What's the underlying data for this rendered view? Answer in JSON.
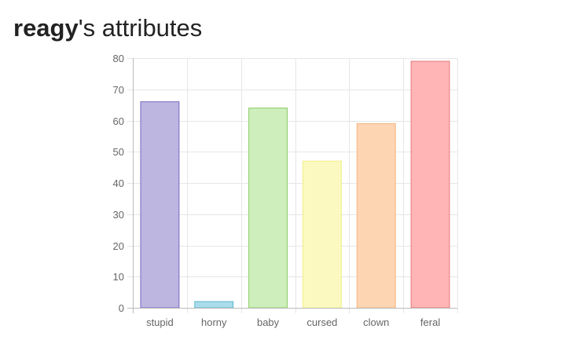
{
  "heading": {
    "user": "reagy",
    "suffix": "'s attributes"
  },
  "chart_data": {
    "type": "bar",
    "title": "",
    "xlabel": "",
    "ylabel": "",
    "categories": [
      "stupid",
      "horny",
      "baby",
      "cursed",
      "clown",
      "feral"
    ],
    "values": [
      66,
      2,
      64,
      47,
      59,
      79
    ],
    "ylim": [
      0,
      80
    ],
    "yticks": [
      "0",
      "10",
      "20",
      "30",
      "40",
      "50",
      "60",
      "70",
      "80"
    ],
    "grid": true,
    "legend": "none",
    "colors": {
      "fill": [
        "#bdb6e0",
        "#a9dcea",
        "#ceeebb",
        "#fbf9bf",
        "#fed5b3",
        "#ffb5b5"
      ],
      "stroke": [
        "#7566c4",
        "#5bb5cf",
        "#88cc66",
        "#eeee88",
        "#f3b47e",
        "#e8787c"
      ],
      "grid": "#e6e6e6",
      "axis": "#bbbbbb"
    }
  }
}
